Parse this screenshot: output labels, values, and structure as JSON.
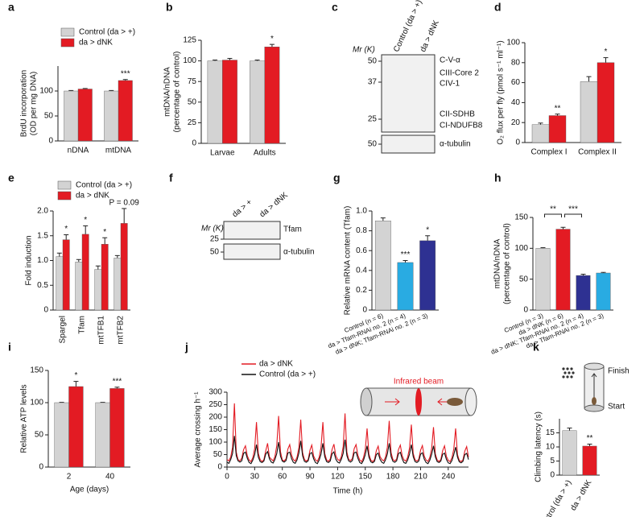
{
  "chart_data": [
    {
      "panel": "a",
      "type": "bar",
      "ylabel": [
        "BrdU incorporation",
        "(OD per mg DNA)"
      ],
      "categories": [
        "nDNA",
        "mtDNA"
      ],
      "ylim": [
        0,
        150
      ],
      "yticks": [
        0,
        50,
        100
      ],
      "series": [
        {
          "name": "Control (da > +)",
          "color": "#d3d3d3",
          "values": [
            100,
            100
          ],
          "errors": [
            1,
            1
          ]
        },
        {
          "name": "da > dNK",
          "color": "#e31b23",
          "values": [
            104,
            121
          ],
          "errors": [
            1,
            2
          ],
          "significance": [
            null,
            "***"
          ]
        }
      ]
    },
    {
      "panel": "b",
      "type": "bar",
      "ylabel": [
        "mtDNA/nDNA",
        "(percentage of control)"
      ],
      "categories": [
        "Larvae",
        "Adults"
      ],
      "ylim": [
        0,
        125
      ],
      "yticks": [
        0,
        25,
        50,
        75,
        100,
        125
      ],
      "series": [
        {
          "color": "#d3d3d3",
          "values": [
            100,
            100
          ],
          "errors": [
            1,
            1
          ]
        },
        {
          "color": "#e31b23",
          "values": [
            101,
            117
          ],
          "errors": [
            2,
            3
          ],
          "significance": [
            null,
            "*"
          ]
        }
      ]
    },
    {
      "panel": "c",
      "type": "blot",
      "lanes": [
        "Control (da > +)",
        "da > dNK"
      ],
      "size_label": "Mr (K)",
      "markers": [
        50,
        37,
        25,
        50
      ],
      "bands": [
        "C-V-α",
        "CIII-Core 2",
        "CIV-1",
        "CII-SDHB",
        "CI-NDUFB8",
        "α-tubulin"
      ]
    },
    {
      "panel": "d",
      "type": "bar",
      "ylabel": [
        "O₂ flux per fly (pmol s⁻¹ ml⁻¹)"
      ],
      "categories": [
        "Complex I",
        "Complex II"
      ],
      "ylim": [
        0,
        100
      ],
      "yticks": [
        0,
        20,
        40,
        60,
        80,
        100
      ],
      "series": [
        {
          "color": "#d3d3d3",
          "values": [
            18,
            61
          ],
          "errors": [
            1.5,
            5
          ]
        },
        {
          "color": "#e31b23",
          "values": [
            27,
            80
          ],
          "errors": [
            1.5,
            5
          ],
          "significance": [
            "**",
            "*"
          ]
        }
      ]
    },
    {
      "panel": "e",
      "type": "bar",
      "ylabel": [
        "Fold induction"
      ],
      "categories": [
        "Spargel",
        "Tfam",
        "mtTFB1",
        "mtTFB2"
      ],
      "ylim": [
        0,
        2
      ],
      "yticks": [
        0,
        0.5,
        {
          "value": 1,
          "label": "1.0"
        },
        1.5,
        {
          "value": 2,
          "label": "2.0"
        }
      ],
      "series": [
        {
          "name": "Control (da > +)",
          "color": "#d3d3d3",
          "values": [
            1.08,
            0.97,
            0.82,
            1.05
          ],
          "errors": [
            0.07,
            0.05,
            0.07,
            0.05
          ],
          "n": [
            3,
            6,
            6,
            3
          ]
        },
        {
          "name": "da > dNK",
          "color": "#e31b23",
          "values": [
            1.42,
            1.53,
            1.33,
            1.75
          ],
          "errors": [
            0.1,
            0.17,
            0.13,
            0.3
          ],
          "n": [
            6,
            6,
            7,
            3
          ],
          "significance": [
            "*",
            "*",
            "*",
            "P = 0.09"
          ]
        }
      ]
    },
    {
      "panel": "f",
      "type": "blot",
      "lanes": [
        "da > +",
        "da > dNK"
      ],
      "size_label": "Mr (K)",
      "markers": [
        25,
        50
      ],
      "bands": [
        "Tfam",
        "α-tubulin"
      ]
    },
    {
      "panel": "g",
      "type": "bar",
      "ylabel": [
        "Relative mRNA content (Tfam)"
      ],
      "categories": [
        "Control (n = 6)",
        "da > Tfam-RNAi no. 2 (n = 4)",
        "da > dNK; Tfam-RNAi no. 2 (n = 3)"
      ],
      "values": [
        0.9,
        0.48,
        0.7
      ],
      "colors": [
        "#d3d3d3",
        "#29abe2",
        "#2e3192"
      ],
      "errors": [
        0.03,
        0.02,
        0.05
      ],
      "significance": [
        null,
        "***",
        "*"
      ],
      "ylim": [
        0,
        1
      ],
      "yticks": [
        0,
        0.2,
        0.4,
        0.6,
        0.8,
        {
          "value": 1,
          "label": "1.0"
        }
      ]
    },
    {
      "panel": "h",
      "type": "bar",
      "ylabel": [
        "mtDNA/nDNA",
        "(percentage of control)"
      ],
      "categories": [
        "Control (n = 3)",
        "da > dNK (n = 6)",
        "da > dNK; Tfam-RNAi no. 2 (n = 4)",
        "da > Tfam-RNAi no. 2 (n = 3)"
      ],
      "values": [
        100,
        131,
        56,
        60
      ],
      "colors": [
        "#d3d3d3",
        "#e31b23",
        "#2e3192",
        "#29abe2"
      ],
      "errors": [
        1,
        3,
        2,
        1
      ],
      "ylim": [
        0,
        150
      ],
      "yticks": [
        0,
        50,
        100,
        150
      ],
      "brackets": [
        "**",
        "***"
      ]
    },
    {
      "panel": "i",
      "type": "bar",
      "ylabel": [
        "Relative ATP levels"
      ],
      "xlabel": "Age (days)",
      "categories": [
        "2",
        "40"
      ],
      "ylim": [
        0,
        150
      ],
      "yticks": [
        0,
        50,
        100,
        150
      ],
      "series": [
        {
          "color": "#d3d3d3",
          "values": [
            100,
            100
          ],
          "errors": [
            0.5,
            0.5
          ]
        },
        {
          "color": "#e31b23",
          "values": [
            125,
            122
          ],
          "errors": [
            8,
            2
          ],
          "significance": [
            "*",
            "***"
          ]
        }
      ]
    },
    {
      "panel": "j",
      "type": "line",
      "ylabel": [
        "Average crossing h⁻¹"
      ],
      "xlabel": "Time (h)",
      "xlim": [
        0,
        262
      ],
      "xticks": [
        0,
        30,
        60,
        90,
        120,
        150,
        180,
        210,
        240
      ],
      "ylim": [
        0,
        300
      ],
      "yticks": [
        0,
        50,
        100,
        150,
        200,
        250,
        300
      ],
      "annotations": [
        "Infrared beam"
      ],
      "x": [
        0,
        2,
        4,
        6,
        8,
        10,
        12,
        14,
        16,
        18,
        20,
        22,
        24,
        26,
        28,
        30,
        32,
        34,
        36,
        38,
        40,
        42,
        44,
        46,
        48,
        50,
        52,
        54,
        56,
        58,
        60,
        62,
        64,
        66,
        68,
        70,
        72,
        74,
        76,
        78,
        80,
        82,
        84,
        86,
        88,
        90,
        92,
        94,
        96,
        98,
        100,
        102,
        104,
        106,
        108,
        110,
        112,
        114,
        116,
        118,
        120,
        122,
        124,
        126,
        128,
        130,
        132,
        134,
        136,
        138,
        140,
        142,
        144,
        146,
        148,
        150,
        152,
        154,
        156,
        158,
        160,
        162,
        164,
        166,
        168,
        170,
        172,
        174,
        176,
        178,
        180,
        182,
        184,
        186,
        188,
        190,
        192,
        194,
        196,
        198,
        200,
        202,
        204,
        206,
        208,
        210,
        212,
        214,
        216,
        218,
        220,
        222,
        224,
        226,
        228,
        230,
        232,
        234,
        236,
        238,
        240,
        242,
        244,
        246,
        248,
        250,
        252,
        254,
        256,
        258,
        260,
        262
      ],
      "series": [
        {
          "name": "da > dNK",
          "color": "#e31b23",
          "values": [
            30,
            25,
            40,
            80,
            255,
            60,
            30,
            25,
            35,
            70,
            85,
            45,
            28,
            22,
            38,
            75,
            180,
            55,
            30,
            22,
            30,
            65,
            95,
            40,
            32,
            25,
            42,
            85,
            205,
            62,
            28,
            25,
            33,
            72,
            90,
            48,
            30,
            24,
            40,
            78,
            190,
            58,
            30,
            24,
            30,
            68,
            88,
            44,
            29,
            23,
            39,
            80,
            180,
            55,
            29,
            23,
            32,
            70,
            92,
            46,
            31,
            26,
            41,
            82,
            215,
            60,
            31,
            26,
            34,
            74,
            90,
            47,
            28,
            22,
            37,
            72,
            155,
            52,
            28,
            22,
            30,
            66,
            84,
            42,
            30,
            25,
            40,
            80,
            185,
            58,
            30,
            25,
            32,
            70,
            88,
            45,
            29,
            24,
            39,
            76,
            170,
            55,
            29,
            24,
            31,
            68,
            86,
            44,
            28,
            23,
            38,
            74,
            160,
            53,
            28,
            23,
            30,
            66,
            85,
            43,
            27,
            22,
            37,
            72,
            155,
            50,
            27,
            22,
            29,
            64,
            82,
            40
          ]
        },
        {
          "name": "Control (da > +)",
          "color": "#111111",
          "values": [
            20,
            15,
            30,
            55,
            125,
            45,
            25,
            20,
            25,
            55,
            60,
            35,
            18,
            14,
            28,
            50,
            90,
            40,
            22,
            18,
            24,
            52,
            62,
            33,
            20,
            16,
            30,
            54,
            100,
            44,
            24,
            20,
            26,
            56,
            60,
            34,
            19,
            15,
            29,
            56,
            105,
            45,
            23,
            19,
            25,
            54,
            58,
            33,
            18,
            14,
            28,
            52,
            95,
            42,
            22,
            18,
            24,
            53,
            61,
            32,
            20,
            16,
            31,
            55,
            110,
            46,
            25,
            20,
            26,
            57,
            60,
            35,
            18,
            14,
            27,
            50,
            85,
            40,
            21,
            17,
            23,
            50,
            56,
            31,
            19,
            15,
            29,
            53,
            95,
            43,
            23,
            19,
            25,
            54,
            59,
            33,
            18,
            15,
            28,
            52,
            90,
            42,
            22,
            18,
            24,
            52,
            57,
            32,
            18,
            14,
            27,
            51,
            85,
            41,
            22,
            18,
            24,
            51,
            56,
            31,
            17,
            14,
            26,
            50,
            80,
            40,
            21,
            17,
            23,
            50,
            55,
            30
          ]
        }
      ]
    },
    {
      "panel": "k",
      "type": "bar",
      "ylabel": [
        "Climbing latency (s)"
      ],
      "categories": [
        "Control (da > +)",
        "da > dNK"
      ],
      "values": [
        15.8,
        10.3
      ],
      "colors": [
        "#d3d3d3",
        "#e31b23"
      ],
      "errors": [
        0.9,
        0.7
      ],
      "significance": [
        null,
        "**"
      ],
      "ylim": [
        0,
        20
      ],
      "yticks": [
        0,
        5,
        10,
        15
      ],
      "annotations": [
        "Finish",
        "Start"
      ]
    }
  ]
}
